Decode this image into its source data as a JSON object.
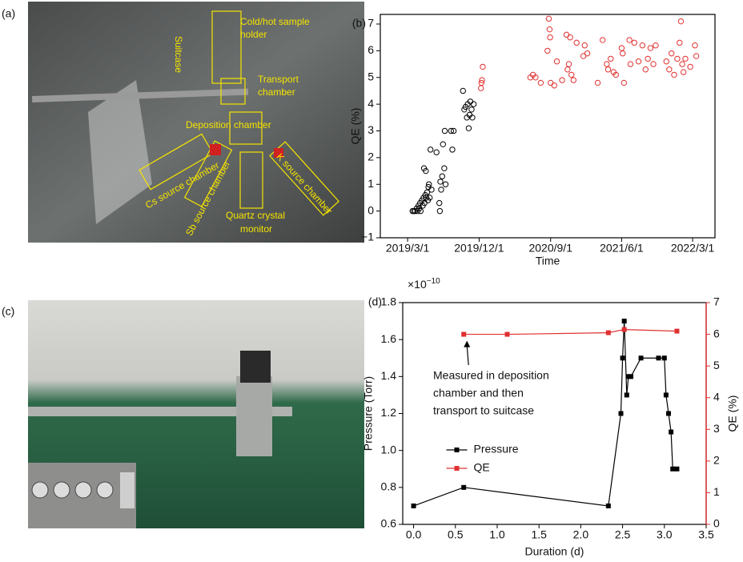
{
  "photos": [
    {
      "panel_label": "(a)",
      "annotations": [
        [
          "Cold/hot sample",
          "holder"
        ],
        [
          "Suitcase"
        ],
        [
          "Transport",
          "chamber"
        ],
        [
          "Deposition chamber"
        ],
        [
          "Cs source chamber"
        ],
        [
          "Sb source chamber"
        ],
        [
          "Quartz crystal",
          "monitor"
        ],
        [
          "K source chamber"
        ]
      ]
    },
    {
      "panel_label": "(c)"
    }
  ],
  "chart_data": [
    {
      "type": "scatter",
      "panel_label": "(b)",
      "x_label": "Time",
      "y_label": "QE (%)",
      "xlim": [
        "2018/11/16",
        "2022/5/26"
      ],
      "xticks": [
        "2019/3/1",
        "2019/12/1",
        "2020/9/1",
        "2021/6/1",
        "2022/3/1"
      ],
      "ylim": [
        -1,
        7.36
      ],
      "yticks": [
        {
          "value": -1,
          "label": "−1"
        },
        0,
        1,
        2,
        3,
        4,
        5,
        6,
        7
      ],
      "marker": "open-circle",
      "series": [
        {
          "color": "#000000",
          "x": [
            "2019/3/20",
            "2019/3/25",
            "2019/3/30",
            "2019/4/5",
            "2019/4/8",
            "2019/4/12",
            "2019/4/15",
            "2019/4/18",
            "2019/4/20",
            "2019/4/25",
            "2019/4/28",
            "2019/5/1",
            "2019/5/3",
            "2019/5/5",
            "2019/5/8",
            "2019/5/10",
            "2019/5/12",
            "2019/5/15",
            "2019/5/18",
            "2019/5/20",
            "2019/5/22",
            "2019/5/25",
            "2019/5/28",
            "2019/6/1",
            "2019/6/20",
            "2019/7/1",
            "2019/7/3",
            "2019/7/5",
            "2019/7/8",
            "2019/7/12",
            "2019/7/15",
            "2019/7/20",
            "2019/7/22",
            "2019/7/25",
            "2019/8/15",
            "2019/8/20",
            "2019/8/25",
            "2019/9/30",
            "2019/10/5",
            "2019/10/10",
            "2019/10/15",
            "2019/10/18",
            "2019/10/22",
            "2019/10/25",
            "2019/10/28",
            "2019/11/2",
            "2019/11/5",
            "2019/11/10"
          ],
          "values": [
            0,
            0,
            0,
            0.1,
            0,
            0.2,
            0.1,
            0.3,
            0,
            0.4,
            0.2,
            0.5,
            1.6,
            0.3,
            0.6,
            1.5,
            0.5,
            0.7,
            0.4,
            0.9,
            1,
            0.5,
            2.3,
            0.8,
            2.2,
            0.3,
            0,
            1.1,
            0.8,
            1.3,
            2.5,
            1.6,
            3,
            1,
            3,
            2.3,
            3,
            4.5,
            3.8,
            3.9,
            3.5,
            4,
            3.1,
            3.6,
            4.1,
            3.8,
            3.5,
            4
          ]
        },
        {
          "color": "#e03030",
          "x": [
            "2019/12/8",
            "2019/12/10",
            "2019/12/12",
            "2019/12/15",
            "2020/6/15",
            "2020/6/25",
            "2020/7/5",
            "2020/7/25",
            "2020/8/20",
            "2020/8/25",
            "2020/8/28",
            "2020/8/30",
            "2020/9/1",
            "2020/9/15",
            "2020/9/25",
            "2020/10/15",
            "2020/11/1",
            "2020/11/5",
            "2020/11/10",
            "2020/11/15",
            "2020/11/20",
            "2020/11/28",
            "2020/12/10",
            "2021/1/5",
            "2021/1/10",
            "2021/1/20",
            "2021/3/1",
            "2021/3/20",
            "2021/4/5",
            "2021/4/10",
            "2021/4/20",
            "2021/5/1",
            "2021/5/10",
            "2021/6/1",
            "2021/6/5",
            "2021/6/10",
            "2021/7/1",
            "2021/7/5",
            "2021/7/20",
            "2021/8/5",
            "2021/8/20",
            "2021/9/1",
            "2021/9/10",
            "2021/9/20",
            "2021/10/1",
            "2021/10/10",
            "2021/11/20",
            "2021/12/1",
            "2021/12/10",
            "2021/12/20",
            "2022/1/1",
            "2022/1/10",
            "2022/1/15",
            "2022/1/20",
            "2022/1/25",
            "2022/2/1",
            "2022/2/20",
            "2022/3/10",
            "2022/3/15"
          ],
          "values": [
            4.6,
            4.8,
            4.9,
            5.4,
            5,
            5.1,
            5,
            4.8,
            6,
            7.2,
            6.8,
            6.5,
            4.8,
            4.7,
            5.6,
            4.9,
            6.6,
            5.3,
            5.5,
            6.5,
            5.1,
            4.9,
            6.3,
            5.8,
            6.2,
            5.9,
            4.8,
            6.4,
            5.5,
            5.3,
            5.7,
            5.2,
            5.1,
            6.1,
            5.9,
            4.8,
            6.4,
            5.5,
            6.3,
            5.6,
            6.2,
            5.3,
            5.7,
            6.1,
            5.5,
            6.2,
            5.6,
            5.3,
            5.9,
            5.1,
            5.7,
            6.3,
            7.1,
            5.5,
            5.2,
            5.7,
            5.4,
            6.2,
            5.8
          ]
        }
      ]
    },
    {
      "type": "line",
      "panel_label": "(d)",
      "x_label": "Duration (d)",
      "y_label": "Pressure (Torr)",
      "y2_label": "QE (%)",
      "y_scale_label": {
        "base": "×10",
        "exponent": "−10"
      },
      "xlim": [
        -0.13,
        3.5
      ],
      "xticks": [
        {
          "value": 0,
          "label": "0.0"
        },
        0.5,
        {
          "value": 1,
          "label": "1.0"
        },
        1.5,
        {
          "value": 2,
          "label": "2.0"
        },
        2.5,
        {
          "value": 3,
          "label": "3.0"
        },
        3.5
      ],
      "ylim": [
        0.6,
        1.8
      ],
      "yticks": [
        0.6,
        0.8,
        {
          "value": 1,
          "label": "1.0"
        },
        1.2,
        1.4,
        1.6,
        1.8
      ],
      "y2lim": [
        0,
        7
      ],
      "y2ticks": [
        0,
        1,
        2,
        3,
        4,
        5,
        6,
        7
      ],
      "y2_color": "#e03030",
      "marker": "square",
      "legend": "lower-center",
      "annotation": [
        "Measured in deposition",
        "chamber and then",
        "transport to suitcase"
      ],
      "series": [
        {
          "name": "Pressure",
          "color": "#000000",
          "x": [
            0,
            0.6,
            2.33,
            2.48,
            2.5,
            2.52,
            2.55,
            2.57,
            2.6,
            2.72,
            2.93,
            3,
            3.02,
            3.05,
            3.08,
            3.1,
            3.15
          ],
          "values": [
            0.7,
            0.8,
            0.7,
            1.2,
            1.5,
            1.7,
            1.3,
            1.4,
            1.4,
            1.5,
            1.5,
            1.5,
            1.3,
            1.2,
            1.1,
            0.9,
            0.9
          ]
        },
        {
          "name": "QE",
          "color": "#e03030",
          "axis": "y2",
          "x": [
            0.6,
            1.12,
            2.33,
            2.52,
            3.15
          ],
          "values": [
            6,
            6,
            6.05,
            6.15,
            6.1
          ]
        }
      ]
    }
  ]
}
